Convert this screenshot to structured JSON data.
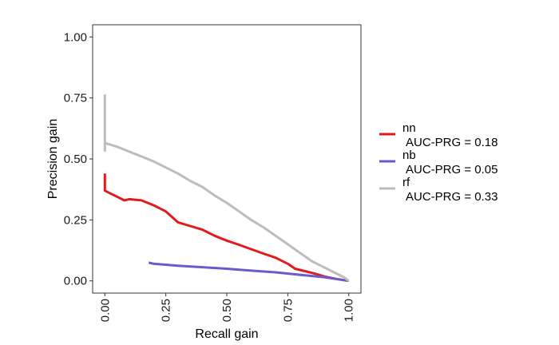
{
  "chart_data": {
    "type": "line",
    "title": "",
    "xlabel": "Recall gain",
    "ylabel": "Precision gain",
    "xlim": [
      -0.05,
      1.05
    ],
    "ylim": [
      -0.05,
      1.05
    ],
    "x_ticks": [
      "0.00",
      "0.25",
      "0.50",
      "0.75",
      "1.00"
    ],
    "y_ticks": [
      "0.00",
      "0.25",
      "0.50",
      "0.75",
      "1.00"
    ],
    "x_tick_values": [
      0,
      0.25,
      0.5,
      0.75,
      1.0
    ],
    "y_tick_values": [
      0,
      0.25,
      0.5,
      0.75,
      1.0
    ],
    "grid": false,
    "legend_position": "right",
    "series": [
      {
        "name": "nn",
        "auc_label": "AUC-PRG = 0.18",
        "color": "#e31a1c",
        "points": [
          [
            0.0,
            0.44
          ],
          [
            0.0,
            0.37
          ],
          [
            0.02,
            0.36
          ],
          [
            0.05,
            0.345
          ],
          [
            0.08,
            0.33
          ],
          [
            0.1,
            0.335
          ],
          [
            0.15,
            0.33
          ],
          [
            0.2,
            0.31
          ],
          [
            0.25,
            0.285
          ],
          [
            0.3,
            0.24
          ],
          [
            0.35,
            0.225
          ],
          [
            0.4,
            0.21
          ],
          [
            0.45,
            0.185
          ],
          [
            0.5,
            0.165
          ],
          [
            0.55,
            0.148
          ],
          [
            0.6,
            0.13
          ],
          [
            0.65,
            0.112
          ],
          [
            0.7,
            0.095
          ],
          [
            0.75,
            0.07
          ],
          [
            0.78,
            0.05
          ],
          [
            0.82,
            0.04
          ],
          [
            0.86,
            0.03
          ],
          [
            0.9,
            0.018
          ],
          [
            0.95,
            0.008
          ],
          [
            1.0,
            0.0
          ]
        ]
      },
      {
        "name": "nb",
        "auc_label": "AUC-PRG = 0.05",
        "color": "#6a5acd",
        "points": [
          [
            0.18,
            0.075
          ],
          [
            0.2,
            0.07
          ],
          [
            0.3,
            0.062
          ],
          [
            0.4,
            0.056
          ],
          [
            0.5,
            0.05
          ],
          [
            0.6,
            0.042
          ],
          [
            0.7,
            0.035
          ],
          [
            0.8,
            0.025
          ],
          [
            0.9,
            0.015
          ],
          [
            1.0,
            0.0
          ]
        ]
      },
      {
        "name": "rf",
        "auc_label": "AUC-PRG = 0.33",
        "color": "#bdbdbd",
        "points": [
          [
            0.0,
            0.53
          ],
          [
            0.0,
            0.76
          ],
          [
            0.0,
            0.565
          ],
          [
            0.05,
            0.55
          ],
          [
            0.1,
            0.53
          ],
          [
            0.15,
            0.51
          ],
          [
            0.2,
            0.49
          ],
          [
            0.25,
            0.465
          ],
          [
            0.3,
            0.44
          ],
          [
            0.35,
            0.41
          ],
          [
            0.4,
            0.385
          ],
          [
            0.45,
            0.35
          ],
          [
            0.5,
            0.32
          ],
          [
            0.55,
            0.285
          ],
          [
            0.6,
            0.25
          ],
          [
            0.65,
            0.22
          ],
          [
            0.7,
            0.185
          ],
          [
            0.75,
            0.15
          ],
          [
            0.8,
            0.115
          ],
          [
            0.85,
            0.08
          ],
          [
            0.9,
            0.055
          ],
          [
            0.95,
            0.03
          ],
          [
            0.98,
            0.015
          ],
          [
            1.0,
            0.0
          ]
        ]
      }
    ]
  }
}
